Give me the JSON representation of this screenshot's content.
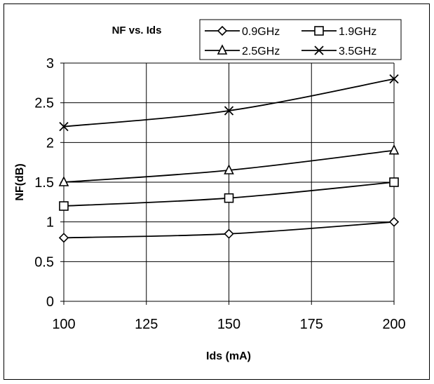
{
  "chart_data": {
    "type": "line",
    "title": "NF vs. Ids",
    "xlabel": "Ids (mA)",
    "ylabel": "NF(dB)",
    "x": [
      100,
      150,
      200
    ],
    "xlim": [
      100,
      200
    ],
    "ylim": [
      0,
      3
    ],
    "x_ticks": [
      "100",
      "125",
      "150",
      "175",
      "200"
    ],
    "y_ticks": [
      "0",
      "0.5",
      "1",
      "1.5",
      "2",
      "2.5",
      "3"
    ],
    "grid": true,
    "legend_position": "top-right",
    "series": [
      {
        "name": "0.9GHz",
        "values": [
          0.8,
          0.85,
          1.0
        ],
        "marker": "diamond"
      },
      {
        "name": "1.9GHz",
        "values": [
          1.2,
          1.3,
          1.5
        ],
        "marker": "square"
      },
      {
        "name": "2.5GHz",
        "values": [
          1.5,
          1.65,
          1.9
        ],
        "marker": "triangle"
      },
      {
        "name": "3.5GHz",
        "values": [
          2.2,
          2.4,
          2.8
        ],
        "marker": "x"
      }
    ],
    "colors": {
      "line": "#000000",
      "grid": "#000000",
      "background": "#ffffff"
    }
  }
}
